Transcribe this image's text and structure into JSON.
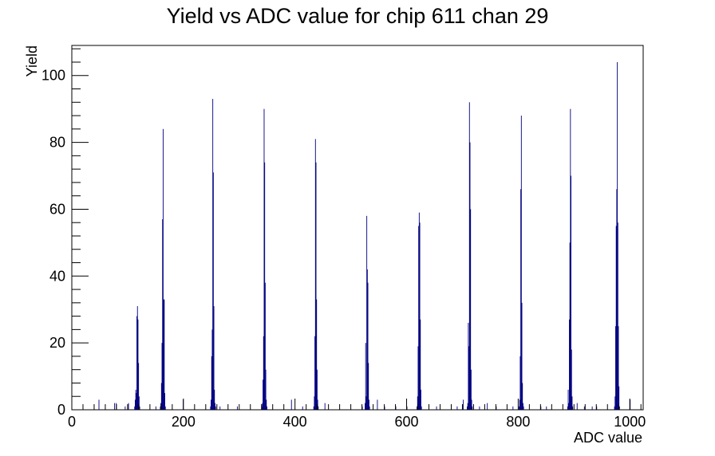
{
  "chart_data": {
    "type": "bar",
    "title": "Yield vs ADC value for chip 611 chan 29",
    "xlabel": "ADC value",
    "ylabel": "Yield",
    "xlim": [
      0,
      1024
    ],
    "ylim": [
      0,
      109
    ],
    "x_ticks": [
      0,
      200,
      400,
      600,
      800,
      1000
    ],
    "y_ticks": [
      0,
      20,
      40,
      60,
      80,
      100
    ],
    "grid": false,
    "legend": "none",
    "series_color": "#000080",
    "peaks": [
      {
        "center": 117,
        "values": [
          1,
          3,
          6,
          5,
          28,
          31,
          27,
          14,
          4,
          1
        ]
      },
      {
        "center": 163,
        "values": [
          1,
          2,
          8,
          20,
          57,
          84,
          33,
          33,
          5,
          1
        ]
      },
      {
        "center": 253,
        "values": [
          1,
          3,
          16,
          24,
          93,
          71,
          31,
          6,
          2,
          1
        ]
      },
      {
        "center": 345,
        "values": [
          1,
          2,
          9,
          22,
          90,
          74,
          38,
          12,
          3,
          1
        ]
      },
      {
        "center": 437,
        "values": [
          1,
          4,
          22,
          81,
          74,
          33,
          12,
          3,
          1
        ]
      },
      {
        "center": 529,
        "values": [
          2,
          20,
          4,
          58,
          42,
          38,
          14,
          3,
          1
        ]
      },
      {
        "center": 622,
        "values": [
          1,
          4,
          19,
          55,
          59,
          56,
          27,
          6,
          1
        ]
      },
      {
        "center": 713,
        "values": [
          1,
          2,
          26,
          19,
          92,
          80,
          60,
          12,
          3,
          1
        ]
      },
      {
        "center": 805,
        "values": [
          1,
          3,
          16,
          66,
          88,
          32,
          8,
          2,
          1
        ]
      },
      {
        "center": 893,
        "values": [
          1,
          6,
          2,
          27,
          50,
          90,
          70,
          18,
          4,
          1
        ]
      },
      {
        "center": 977,
        "values": [
          1,
          4,
          25,
          55,
          66,
          104,
          56,
          25,
          7,
          1
        ]
      }
    ],
    "isolated": [
      {
        "x": 48,
        "y": 3
      },
      {
        "x": 76,
        "y": 2
      },
      {
        "x": 79,
        "y": 2
      },
      {
        "x": 95,
        "y": 1
      },
      {
        "x": 101,
        "y": 2
      },
      {
        "x": 150,
        "y": 1
      },
      {
        "x": 199,
        "y": 3
      },
      {
        "x": 265,
        "y": 1
      },
      {
        "x": 296,
        "y": 1
      },
      {
        "x": 393,
        "y": 3
      },
      {
        "x": 413,
        "y": 1
      },
      {
        "x": 453,
        "y": 2
      },
      {
        "x": 520,
        "y": 1
      },
      {
        "x": 547,
        "y": 3
      },
      {
        "x": 560,
        "y": 1
      },
      {
        "x": 580,
        "y": 1
      },
      {
        "x": 600,
        "y": 1
      },
      {
        "x": 653,
        "y": 1
      },
      {
        "x": 690,
        "y": 1
      },
      {
        "x": 701,
        "y": 3
      },
      {
        "x": 730,
        "y": 1
      },
      {
        "x": 744,
        "y": 2
      },
      {
        "x": 760,
        "y": 1
      },
      {
        "x": 790,
        "y": 1
      },
      {
        "x": 840,
        "y": 1
      },
      {
        "x": 850,
        "y": 1
      },
      {
        "x": 905,
        "y": 2
      },
      {
        "x": 918,
        "y": 1
      },
      {
        "x": 932,
        "y": 1
      },
      {
        "x": 940,
        "y": 1
      },
      {
        "x": 1000,
        "y": 3
      }
    ]
  }
}
